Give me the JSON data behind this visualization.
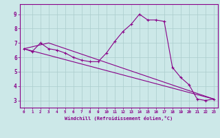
{
  "xlabel": "Windchill (Refroidissement éolien,°C)",
  "background_color": "#cce8e8",
  "line_color": "#880088",
  "grid_color": "#aacccc",
  "xlim": [
    -0.5,
    23.5
  ],
  "ylim": [
    2.5,
    9.7
  ],
  "yticks": [
    3,
    4,
    5,
    6,
    7,
    8,
    9
  ],
  "xticks": [
    0,
    1,
    2,
    3,
    4,
    5,
    6,
    7,
    8,
    9,
    10,
    11,
    12,
    13,
    14,
    15,
    16,
    17,
    18,
    19,
    20,
    21,
    22,
    23
  ],
  "series1_x": [
    0,
    1,
    2,
    3,
    4,
    5,
    6,
    7,
    8,
    9,
    10,
    11,
    12,
    13,
    14,
    15,
    16,
    17,
    18,
    19,
    20,
    21,
    22,
    23
  ],
  "series1_y": [
    6.6,
    6.4,
    7.0,
    6.6,
    6.5,
    6.3,
    6.0,
    5.8,
    5.7,
    5.7,
    6.3,
    7.1,
    7.8,
    8.3,
    9.0,
    8.6,
    8.6,
    8.5,
    5.3,
    4.6,
    4.1,
    3.1,
    3.0,
    3.1
  ],
  "series2_x": [
    0,
    23
  ],
  "series2_y": [
    6.6,
    3.1
  ],
  "series3_x": [
    0,
    3,
    23
  ],
  "series3_y": [
    6.6,
    7.0,
    3.1
  ]
}
